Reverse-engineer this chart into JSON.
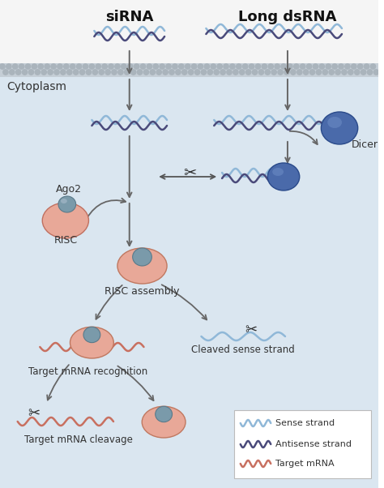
{
  "title_sirna": "siRNA",
  "title_dsrna": "Long dsRNA",
  "cytoplasm_label": "Cytoplasm",
  "bg_top": "#f5f5f5",
  "bg_cytoplasm": "#dae6f0",
  "membrane_color": "#c0c8d0",
  "arrow_color": "#555555",
  "sense_color": "#90b8d8",
  "antisense_color": "#4a4a7a",
  "target_mrna_color": "#c87060",
  "dicer_color": "#3a5a9a",
  "dicer_sphere_color": "#4a6aaa",
  "risc_body_color": "#e8a898",
  "risc_core_color": "#7a9aaa",
  "labels": {
    "risc": "RISC",
    "ago2": "Ago2",
    "risc_assembly": "RISC assembly",
    "cleaved": "Cleaved sense strand",
    "target_recognition": "Target mRNA recognition",
    "target_cleavage": "Target mRNA cleavage",
    "dicer": "Dicer"
  },
  "legend": {
    "sense_label": "Sense strand",
    "antisense_label": "Antisense strand",
    "target_label": "Target mRNA"
  },
  "fig_width": 4.74,
  "fig_height": 6.02
}
